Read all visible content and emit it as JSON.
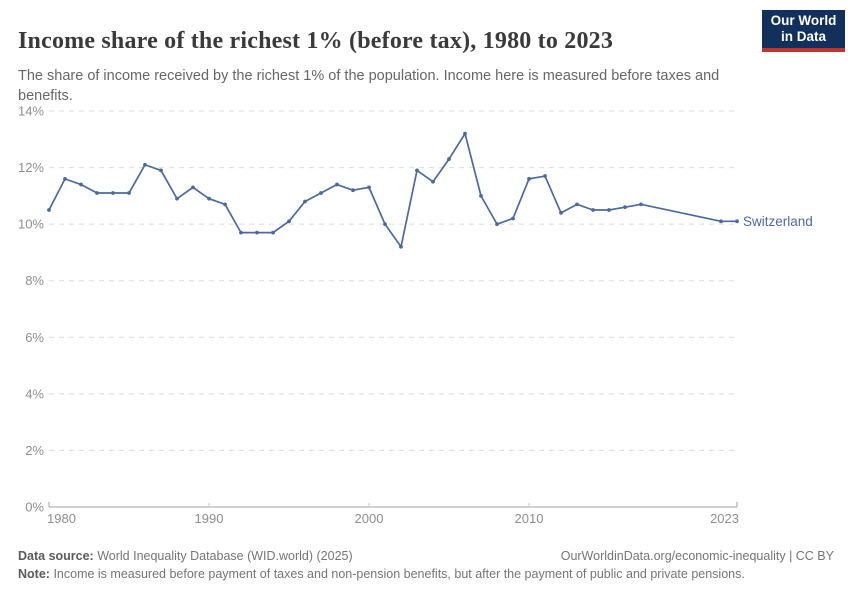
{
  "header": {
    "title": "Income share of the richest 1% (before tax), 1980 to 2023",
    "subtitle": "The share of income received by the richest 1% of the population. Income here is measured before taxes and benefits.",
    "logo_line1": "Our World",
    "logo_line2": "in Data",
    "logo_bg_color": "#12305B",
    "logo_stripe_color": "#C0352B"
  },
  "chart_data": {
    "type": "line",
    "title": "Income share of the richest 1% (before tax), 1980 to 2023",
    "xlabel": "",
    "ylabel": "",
    "x_range": [
      1980,
      2023
    ],
    "y_range": [
      0,
      14
    ],
    "x_ticks": [
      1980,
      1990,
      2000,
      2010,
      2023
    ],
    "y_ticks": [
      0,
      2,
      4,
      6,
      8,
      10,
      12,
      14
    ],
    "y_tick_suffix": "%",
    "grid": "horizontal-dashed",
    "legend_position": "end-of-line-label",
    "series": [
      {
        "name": "Switzerland",
        "color": "#4C6A9C",
        "points": [
          [
            1980,
            10.5
          ],
          [
            1981,
            11.6
          ],
          [
            1982,
            11.4
          ],
          [
            1983,
            11.1
          ],
          [
            1984,
            11.1
          ],
          [
            1985,
            11.1
          ],
          [
            1986,
            12.1
          ],
          [
            1987,
            11.9
          ],
          [
            1988,
            10.9
          ],
          [
            1989,
            11.3
          ],
          [
            1990,
            10.9
          ],
          [
            1991,
            10.7
          ],
          [
            1992,
            9.7
          ],
          [
            1993,
            9.7
          ],
          [
            1994,
            9.7
          ],
          [
            1995,
            10.1
          ],
          [
            1996,
            10.8
          ],
          [
            1997,
            11.1
          ],
          [
            1998,
            11.4
          ],
          [
            1999,
            11.2
          ],
          [
            2000,
            11.3
          ],
          [
            2001,
            10.0
          ],
          [
            2002,
            9.2
          ],
          [
            2003,
            11.9
          ],
          [
            2004,
            11.5
          ],
          [
            2005,
            12.3
          ],
          [
            2006,
            13.2
          ],
          [
            2007,
            11.0
          ],
          [
            2008,
            10.0
          ],
          [
            2009,
            10.2
          ],
          [
            2010,
            11.6
          ],
          [
            2011,
            11.7
          ],
          [
            2012,
            10.4
          ],
          [
            2013,
            10.7
          ],
          [
            2014,
            10.5
          ],
          [
            2015,
            10.5
          ],
          [
            2016,
            10.6
          ],
          [
            2017,
            10.7
          ],
          [
            2022,
            10.1
          ],
          [
            2023,
            10.1
          ]
        ]
      }
    ]
  },
  "footer": {
    "source_label": "Data source:",
    "source_text": "World Inequality Database (WID.world) (2025)",
    "link_text": "OurWorldinData.org/economic-inequality | CC BY",
    "note_label": "Note:",
    "note_text": "Income is measured before payment of taxes and non-pension benefits, but after the payment of public and private pensions."
  }
}
